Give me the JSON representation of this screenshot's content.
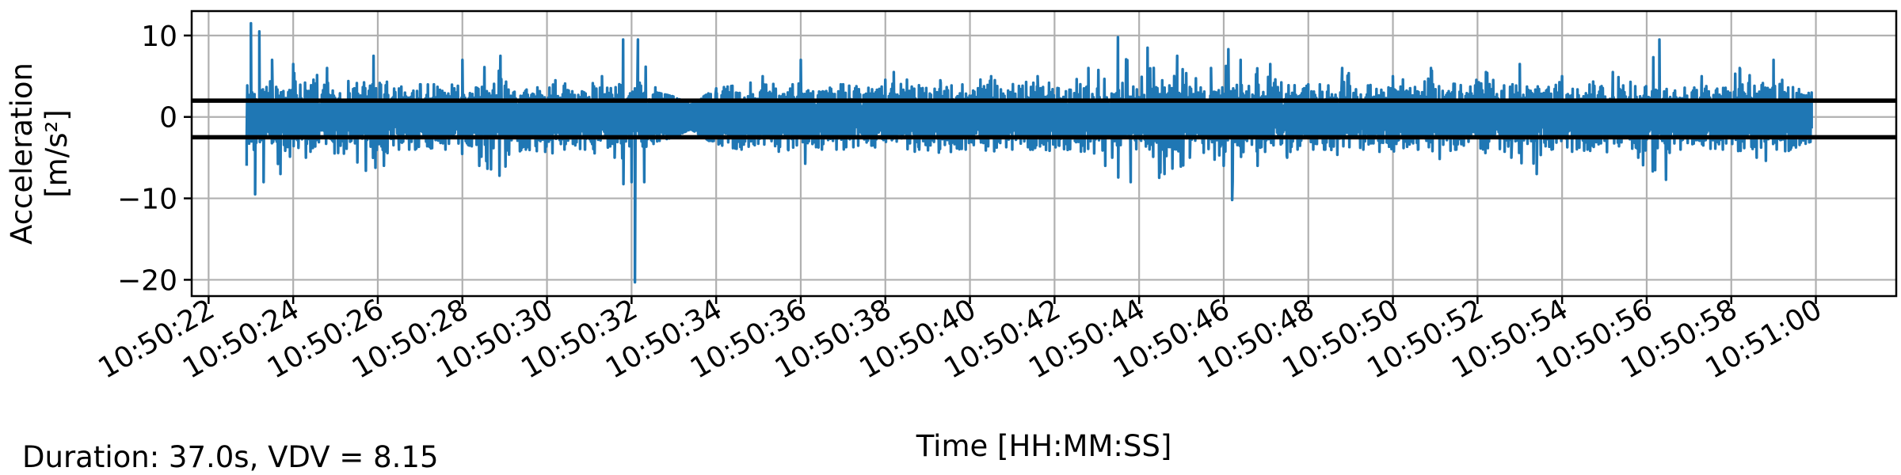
{
  "footer": {
    "note": "Duration: 37.0s, VDV = 8.15"
  },
  "chart_data": {
    "type": "line",
    "title": "",
    "xlabel": "Time [HH:MM:SS]",
    "ylabel": "Acceleration [m/s²]",
    "ylabel_lines": [
      "Acceleration",
      "[m/s²]"
    ],
    "x_unit": "HH:MM:SS",
    "xlim": [
      "10:50:21.6",
      "10:51:01.9"
    ],
    "ylim": [
      -22,
      13
    ],
    "x_ticks": [
      "10:50:22",
      "10:50:24",
      "10:50:26",
      "10:50:28",
      "10:50:30",
      "10:50:32",
      "10:50:34",
      "10:50:36",
      "10:50:38",
      "10:50:40",
      "10:50:42",
      "10:50:44",
      "10:50:46",
      "10:50:48",
      "10:50:50",
      "10:50:52",
      "10:50:54",
      "10:50:56",
      "10:50:58",
      "10:51:00"
    ],
    "y_ticks": [
      10,
      0,
      -10,
      -20
    ],
    "y_tick_labels": [
      "10",
      "0",
      "−10",
      "−20"
    ],
    "grid": true,
    "series": [
      {
        "color": "#1f77b4",
        "start": "10:50:22.9",
        "end": "10:50:59.9",
        "points": [
          [
            "10:50:22.9",
            -6
          ],
          [
            "10:50:23.0",
            11.5
          ],
          [
            "10:50:23.1",
            -9.5
          ],
          [
            "10:50:23.2",
            10.5
          ],
          [
            "10:50:23.3",
            -8
          ],
          [
            "10:50:23.5",
            7
          ],
          [
            "10:50:23.7",
            -7
          ],
          [
            "10:50:24.0",
            6.5
          ],
          [
            "10:50:24.3",
            -5
          ],
          [
            "10:50:24.8",
            6
          ],
          [
            "10:50:25.2",
            -4.5
          ],
          [
            "10:50:25.9",
            7.5
          ],
          [
            "10:50:26.5",
            -4
          ],
          [
            "10:50:27.0",
            4
          ],
          [
            "10:50:27.6",
            -4
          ],
          [
            "10:50:28.0",
            7
          ],
          [
            "10:50:28.4",
            -6
          ],
          [
            "10:50:28.9",
            7.5
          ],
          [
            "10:50:29.5",
            -4
          ],
          [
            "10:50:30.2",
            4.5
          ],
          [
            "10:50:30.9",
            -4
          ],
          [
            "10:50:31.3",
            5
          ],
          [
            "10:50:31.6",
            -5
          ],
          [
            "10:50:31.8",
            9.5
          ],
          [
            "10:50:32.0",
            -8
          ],
          [
            "10:50:32.08",
            -20.3
          ],
          [
            "10:50:32.15",
            9.5
          ],
          [
            "10:50:32.3",
            -8
          ],
          [
            "10:50:32.6",
            3
          ],
          [
            "10:50:33.0",
            -2.5
          ],
          [
            "10:50:33.4",
            1.5
          ],
          [
            "10:50:34.0",
            3.5
          ],
          [
            "10:50:34.6",
            -4
          ],
          [
            "10:50:35.1",
            5
          ],
          [
            "10:50:35.7",
            -4
          ],
          [
            "10:50:36.0",
            7
          ],
          [
            "10:50:36.5",
            -4
          ],
          [
            "10:50:37.0",
            4
          ],
          [
            "10:50:37.7",
            -3.5
          ],
          [
            "10:50:38.2",
            5.5
          ],
          [
            "10:50:38.8",
            -4
          ],
          [
            "10:50:39.3",
            4.5
          ],
          [
            "10:50:39.9",
            -4
          ],
          [
            "10:50:40.5",
            5
          ],
          [
            "10:50:41.0",
            -4
          ],
          [
            "10:50:41.6",
            5
          ],
          [
            "10:50:42.1",
            -3.5
          ],
          [
            "10:50:42.8",
            6
          ],
          [
            "10:50:43.2",
            -6
          ],
          [
            "10:50:43.5",
            9.8
          ],
          [
            "10:50:43.8",
            -8
          ],
          [
            "10:50:44.2",
            8.5
          ],
          [
            "10:50:44.6",
            -7
          ],
          [
            "10:50:44.9",
            7.5
          ],
          [
            "10:50:45.2",
            -5
          ],
          [
            "10:50:45.7",
            6
          ],
          [
            "10:50:46.0",
            -6
          ],
          [
            "10:50:46.2",
            -10.2
          ],
          [
            "10:50:46.4",
            7
          ],
          [
            "10:50:46.8",
            -6
          ],
          [
            "10:50:47.1",
            6.5
          ],
          [
            "10:50:47.5",
            -5
          ],
          [
            "10:50:48.0",
            4
          ],
          [
            "10:50:48.4",
            -4
          ],
          [
            "10:50:48.8",
            6
          ],
          [
            "10:50:49.3",
            -4
          ],
          [
            "10:50:50.0",
            5
          ],
          [
            "10:50:50.6",
            -4
          ],
          [
            "10:50:50.9",
            6
          ],
          [
            "10:50:51.5",
            -4
          ],
          [
            "10:50:52.2",
            5.5
          ],
          [
            "10:50:52.8",
            -5
          ],
          [
            "10:50:53.0",
            6.5
          ],
          [
            "10:50:53.4",
            -7
          ],
          [
            "10:50:54.0",
            5
          ],
          [
            "10:50:54.6",
            -4
          ],
          [
            "10:50:55.2",
            5.5
          ],
          [
            "10:50:55.8",
            -5
          ],
          [
            "10:50:56.3",
            9.5
          ],
          [
            "10:50:56.8",
            -4
          ],
          [
            "10:50:57.3",
            5
          ],
          [
            "10:50:57.8",
            -4
          ],
          [
            "10:50:58.2",
            6
          ],
          [
            "10:50:58.6",
            -5
          ],
          [
            "10:50:59.0",
            7
          ],
          [
            "10:50:59.4",
            -4
          ],
          [
            "10:50:59.9",
            3
          ]
        ]
      }
    ],
    "hlines": [
      {
        "y": 2.0,
        "color": "#000000"
      },
      {
        "y": -2.5,
        "color": "#000000"
      }
    ]
  }
}
